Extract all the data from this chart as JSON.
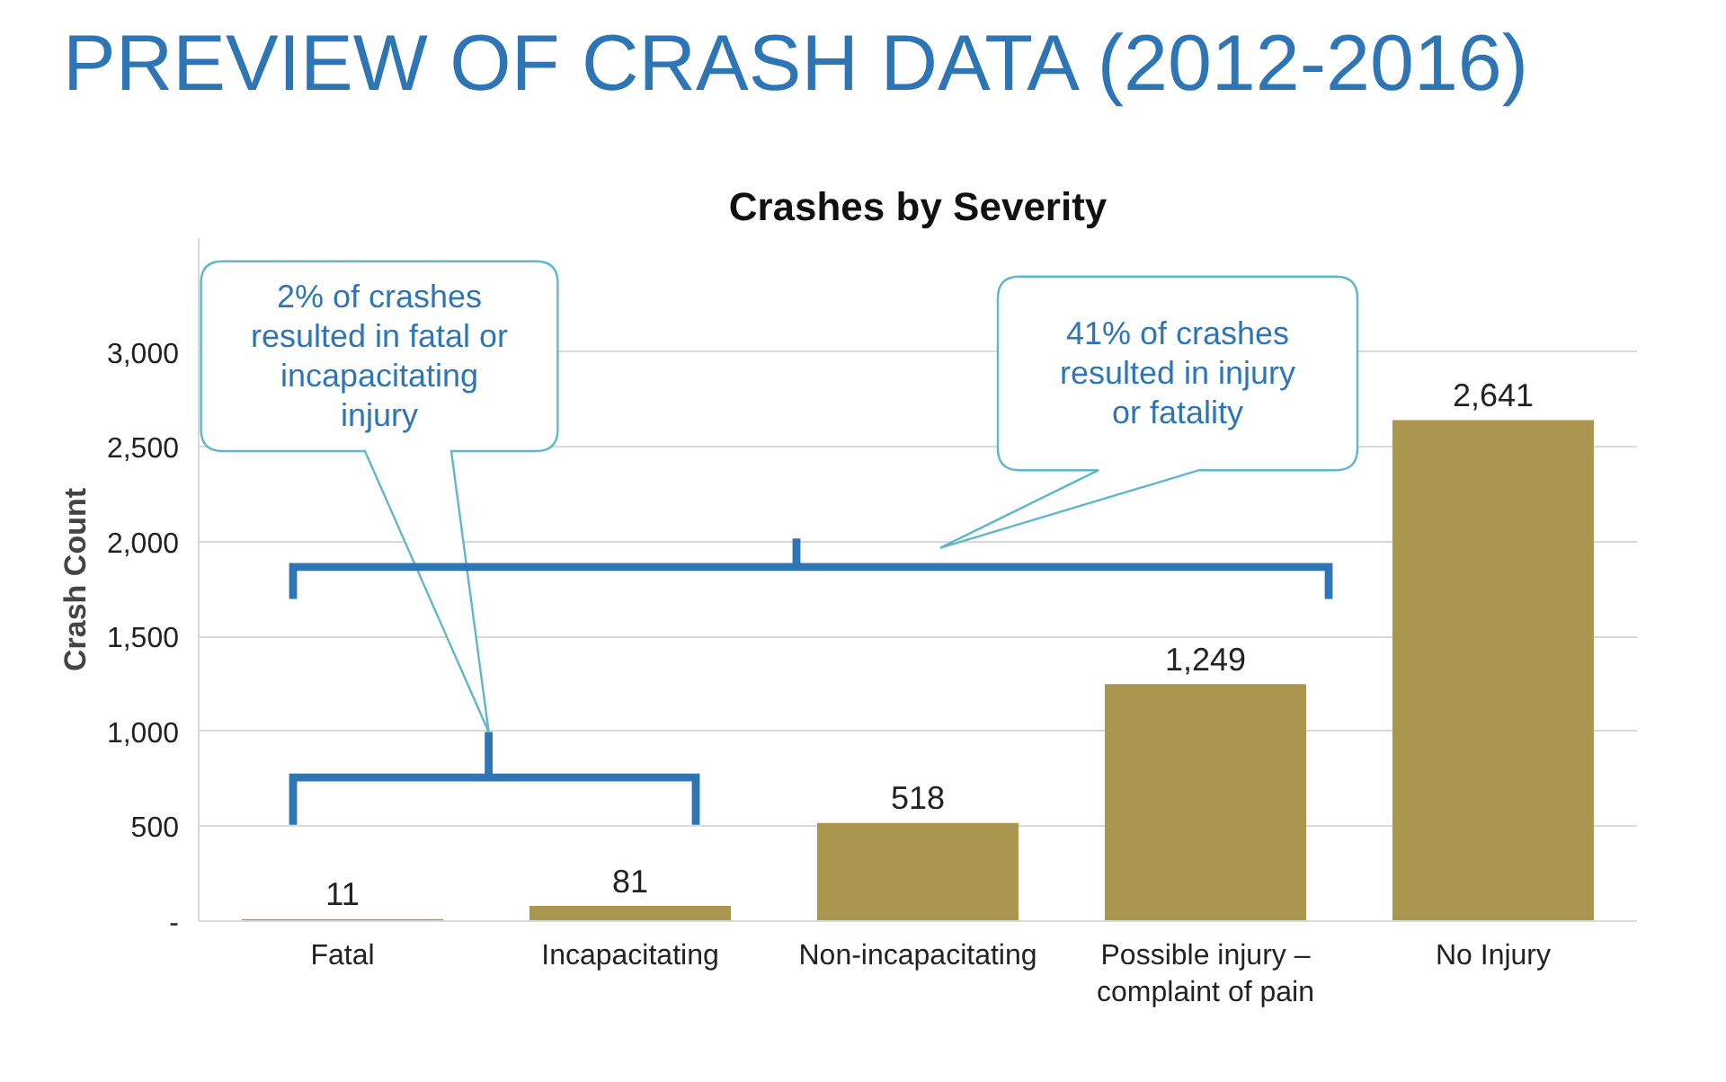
{
  "chart_data": {
    "type": "bar",
    "title": "PREVIEW OF CRASH DATA (2012-2016)",
    "subtitle": "Crashes by Severity",
    "ylabel": "Crash Count",
    "categories": [
      "Fatal",
      "Incapacitating",
      "Non-incapacitating",
      "Possible injury –\ncomplaint of pain",
      "No Injury"
    ],
    "values": [
      11,
      81,
      518,
      1249,
      2641
    ],
    "color": "#ab964f",
    "value_labels": [
      "11",
      "81",
      "518",
      "1,249",
      "2,641"
    ],
    "ylim": [
      0,
      3600
    ],
    "yticks": [
      {
        "value": 0,
        "label": "-"
      },
      {
        "value": 500,
        "label": "500"
      },
      {
        "value": 1000,
        "label": "1,000"
      },
      {
        "value": 1500,
        "label": "1,500"
      },
      {
        "value": 2000,
        "label": "2,000"
      },
      {
        "value": 2500,
        "label": "2,500"
      },
      {
        "value": 3000,
        "label": "3,000"
      }
    ],
    "grid": "y",
    "annotations": [
      "2% of crashes\nresulted in fatal or\nincapacitating\ninjury",
      "41% of crashes\nresulted in injury\nor fatality"
    ]
  }
}
